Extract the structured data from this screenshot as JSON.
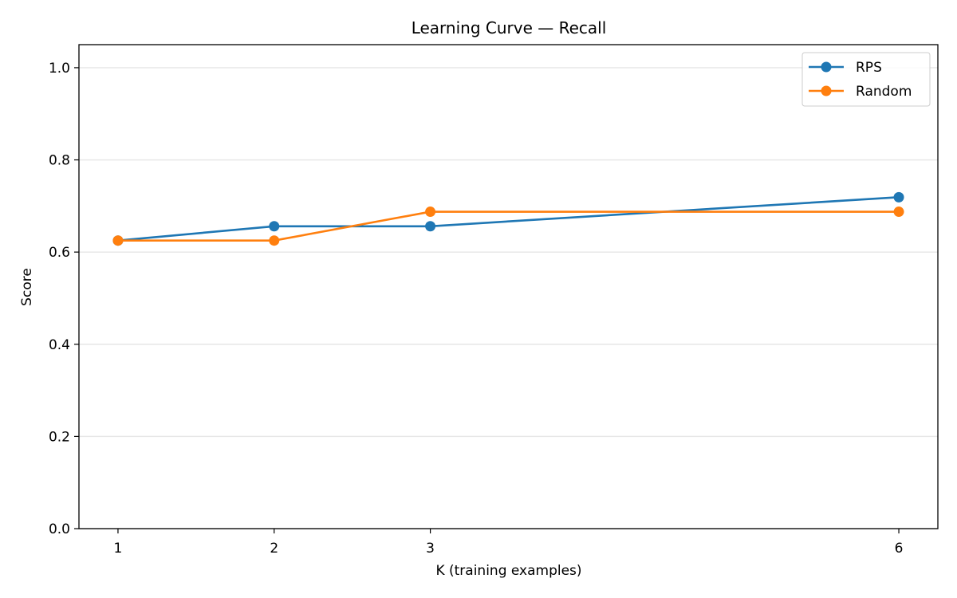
{
  "chart_data": {
    "type": "line",
    "title": "Learning Curve — Recall",
    "xlabel": "K (training examples)",
    "ylabel": "Score",
    "x": [
      1,
      2,
      3,
      6
    ],
    "xticks": [
      "1",
      "2",
      "3",
      "6"
    ],
    "xlim": [
      0.75,
      6.25
    ],
    "ylim": [
      0,
      1.05
    ],
    "yticks": [
      "0.0",
      "0.2",
      "0.4",
      "0.6",
      "0.8",
      "1.0"
    ],
    "grid": "horizontal",
    "legend": "top-right",
    "series": [
      {
        "name": "RPS",
        "color": "#1f77b4",
        "marker": "circle",
        "values": [
          0.625,
          0.656,
          0.656,
          0.719
        ]
      },
      {
        "name": "Random",
        "color": "#ff7f0e",
        "marker": "circle",
        "values": [
          0.625,
          0.625,
          0.6875,
          0.6875
        ]
      }
    ]
  }
}
